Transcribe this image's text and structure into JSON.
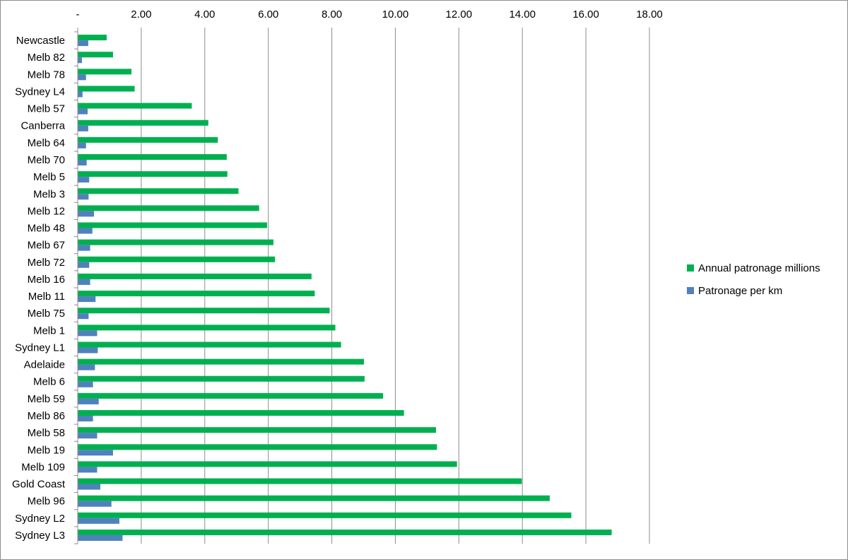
{
  "chart_data": {
    "type": "bar",
    "orientation": "horizontal",
    "categories": [
      "Newcastle",
      "Melb 82",
      "Melb 78",
      "Sydney L4",
      "Melb 57",
      "Canberra",
      "Melb 64",
      "Melb 70",
      "Melb 5",
      "Melb 3",
      "Melb 12",
      "Melb 48",
      "Melb 67",
      "Melb 72",
      "Melb 16",
      "Melb 11",
      "Melb 75",
      "Melb 1",
      "Sydney L1",
      "Adelaide",
      "Melb 6",
      "Melb 59",
      "Melb 86",
      "Melb 58",
      "Melb 19",
      "Melb 109",
      "Gold Coast",
      "Melb 96",
      "Sydney L2",
      "Sydney L3"
    ],
    "series": [
      {
        "name": "Annual patronage millions",
        "color": "#00b050",
        "values": [
          0.9,
          1.1,
          1.68,
          1.78,
          3.58,
          4.1,
          4.4,
          4.68,
          4.7,
          5.05,
          5.7,
          5.95,
          6.15,
          6.2,
          7.35,
          7.45,
          7.92,
          8.1,
          8.28,
          9.0,
          9.02,
          9.6,
          10.26,
          11.27,
          11.3,
          11.93,
          13.97,
          14.85,
          15.53,
          16.8
        ]
      },
      {
        "name": "Patronage per km",
        "color": "#4f81bd",
        "values": [
          0.32,
          0.12,
          0.25,
          0.14,
          0.3,
          0.32,
          0.25,
          0.27,
          0.35,
          0.33,
          0.5,
          0.45,
          0.38,
          0.35,
          0.38,
          0.55,
          0.33,
          0.6,
          0.62,
          0.53,
          0.47,
          0.65,
          0.47,
          0.6,
          1.1,
          0.6,
          0.7,
          1.05,
          1.3,
          1.4
        ]
      }
    ],
    "x_ticks": [
      "-",
      "2.00",
      "4.00",
      "6.00",
      "8.00",
      "10.00",
      "12.00",
      "14.00",
      "16.00",
      "18.00"
    ],
    "xlim": [
      0,
      18
    ],
    "title": "",
    "xlabel": "",
    "ylabel": "",
    "grid": true,
    "legend_position": "right"
  }
}
